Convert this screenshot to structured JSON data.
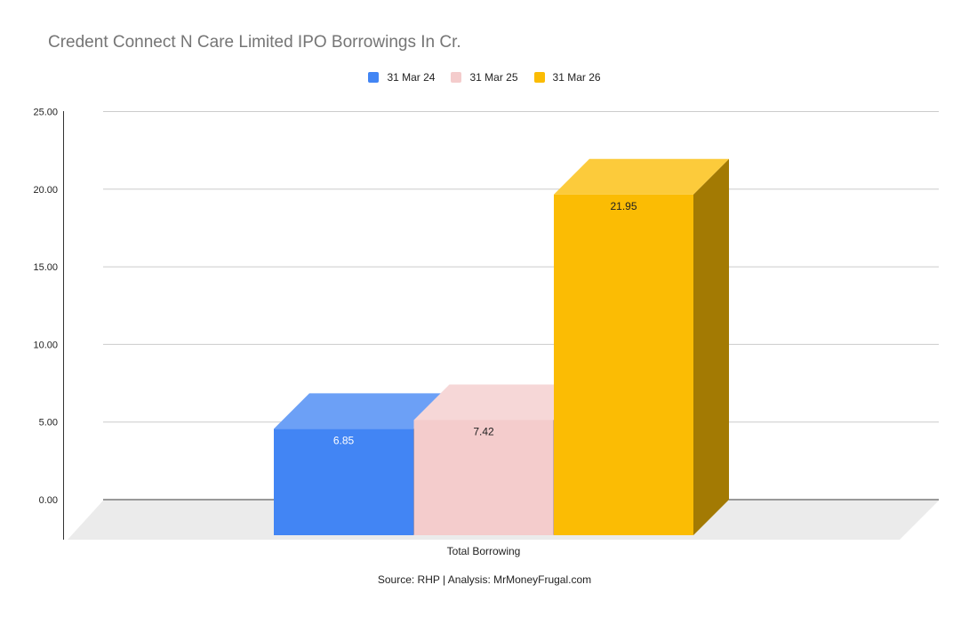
{
  "chart_data": {
    "type": "bar",
    "title": "Credent Connect N Care Limited IPO Borrowings In Cr.",
    "categories": [
      "Total Borrowing"
    ],
    "series": [
      {
        "name": "31 Mar 24",
        "values": [
          6.85
        ],
        "color": "#4285f4",
        "label": "6.85"
      },
      {
        "name": "31 Mar 25",
        "values": [
          7.42
        ],
        "color": "#f4cccc",
        "label": "7.42"
      },
      {
        "name": "31 Mar 26",
        "values": [
          21.95
        ],
        "color": "#fbbc04",
        "label": "21.95"
      }
    ],
    "yticks": [
      "0.00",
      "5.00",
      "10.00",
      "15.00",
      "20.00",
      "25.00"
    ],
    "ylim": [
      0,
      25
    ],
    "grid": true,
    "legend_position": "top",
    "source": "Source: RHP | Analysis: MrMoneyFrugal.com"
  }
}
